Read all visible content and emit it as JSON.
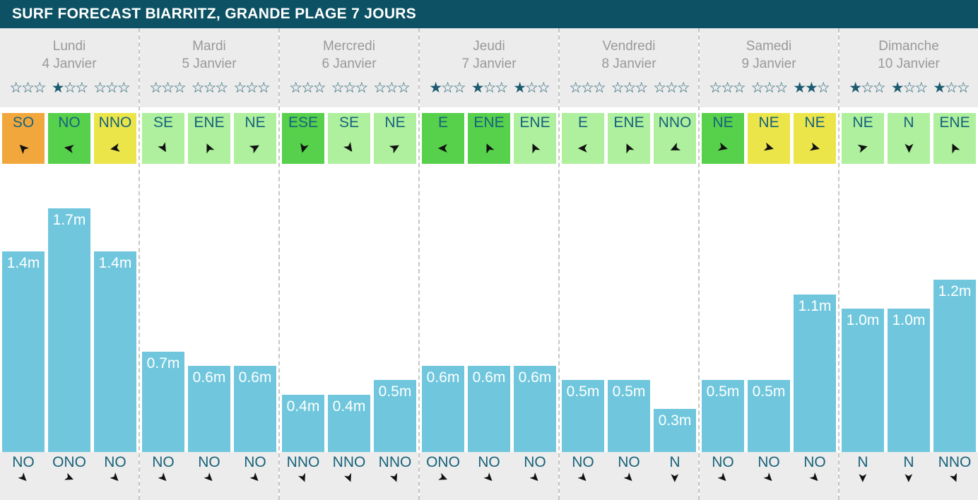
{
  "title": "SURF FORECAST BIARRITZ, GRANDE PLAGE 7 JOURS",
  "glyphs": {
    "arrow": "➤",
    "star_filled": "★",
    "star_empty": "☆"
  },
  "colors": {
    "header_bg": "#0d5264",
    "header_text": "#ffffff",
    "panel_bg": "#ececec",
    "day_text": "#999999",
    "star": "#1c5b70",
    "direction_text": "#17637a",
    "bar": "#70c7dd",
    "bar_label": "#ffffff",
    "separator": "#c6c6c6",
    "arrow": "#111111",
    "wind_orange": "#f2a73d",
    "wind_green": "#57d04b",
    "wind_yellow": "#ece54a",
    "wind_lightgreen": "#aef09d"
  },
  "days": [
    {
      "name": "Lundi",
      "date": "4 Janvier",
      "stars": [
        0,
        1,
        0
      ],
      "wind": [
        {
          "dir": "SO",
          "color": "orange",
          "rot": -135
        },
        {
          "dir": "NO",
          "color": "green",
          "rot": -170
        },
        {
          "dir": "NNO",
          "color": "yellow",
          "rot": 170
        }
      ],
      "waves": [
        {
          "label": "1.4m",
          "h": 1.4,
          "swell": "NO",
          "rot": 45
        },
        {
          "label": "1.7m",
          "h": 1.7,
          "swell": "ONO",
          "rot": 22
        },
        {
          "label": "1.4m",
          "h": 1.4,
          "swell": "NO",
          "rot": 45
        }
      ]
    },
    {
      "name": "Mardi",
      "date": "5 Janvier",
      "stars": [
        0,
        0,
        0
      ],
      "wind": [
        {
          "dir": "SE",
          "color": "light",
          "rot": 60
        },
        {
          "dir": "ENE",
          "color": "light",
          "rot": -115
        },
        {
          "dir": "NE",
          "color": "light",
          "rot": -30
        }
      ],
      "waves": [
        {
          "label": "0.7m",
          "h": 0.7,
          "swell": "NO",
          "rot": 45
        },
        {
          "label": "0.6m",
          "h": 0.6,
          "swell": "NO",
          "rot": 45
        },
        {
          "label": "0.6m",
          "h": 0.6,
          "swell": "NO",
          "rot": 45
        }
      ]
    },
    {
      "name": "Mercredi",
      "date": "6 Janvier",
      "stars": [
        0,
        0,
        0
      ],
      "wind": [
        {
          "dir": "ESE",
          "color": "green",
          "rot": 105
        },
        {
          "dir": "SE",
          "color": "light",
          "rot": 55
        },
        {
          "dir": "NE",
          "color": "light",
          "rot": -30
        }
      ],
      "waves": [
        {
          "label": "0.4m",
          "h": 0.4,
          "swell": "NNO",
          "rot": 68
        },
        {
          "label": "0.4m",
          "h": 0.4,
          "swell": "NNO",
          "rot": 68
        },
        {
          "label": "0.5m",
          "h": 0.5,
          "swell": "NNO",
          "rot": 68
        }
      ]
    },
    {
      "name": "Jeudi",
      "date": "7 Janvier",
      "stars": [
        1,
        1,
        1
      ],
      "wind": [
        {
          "dir": "E",
          "color": "green",
          "rot": 180
        },
        {
          "dir": "ENE",
          "color": "green",
          "rot": -115
        },
        {
          "dir": "ENE",
          "color": "light",
          "rot": -115
        }
      ],
      "waves": [
        {
          "label": "0.6m",
          "h": 0.6,
          "swell": "ONO",
          "rot": 22
        },
        {
          "label": "0.6m",
          "h": 0.6,
          "swell": "NO",
          "rot": 45
        },
        {
          "label": "0.6m",
          "h": 0.6,
          "swell": "NO",
          "rot": 45
        }
      ]
    },
    {
      "name": "Vendredi",
      "date": "8 Janvier",
      "stars": [
        0,
        0,
        0
      ],
      "wind": [
        {
          "dir": "E",
          "color": "light",
          "rot": 180
        },
        {
          "dir": "ENE",
          "color": "light",
          "rot": -115
        },
        {
          "dir": "NNO",
          "color": "light",
          "rot": 155
        }
      ],
      "waves": [
        {
          "label": "0.5m",
          "h": 0.5,
          "swell": "NO",
          "rot": 45
        },
        {
          "label": "0.5m",
          "h": 0.5,
          "swell": "NO",
          "rot": 45
        },
        {
          "label": "0.3m",
          "h": 0.3,
          "swell": "N",
          "rot": 90
        }
      ]
    },
    {
      "name": "Samedi",
      "date": "9 Janvier",
      "stars": [
        0,
        0,
        2
      ],
      "wind": [
        {
          "dir": "NE",
          "color": "green",
          "rot": 15
        },
        {
          "dir": "NE",
          "color": "yellow",
          "rot": 15
        },
        {
          "dir": "NE",
          "color": "yellow",
          "rot": 15
        }
      ],
      "waves": [
        {
          "label": "0.5m",
          "h": 0.5,
          "swell": "NO",
          "rot": 45
        },
        {
          "label": "0.5m",
          "h": 0.5,
          "swell": "NO",
          "rot": 45
        },
        {
          "label": "1.1m",
          "h": 1.1,
          "swell": "NO",
          "rot": 45
        }
      ]
    },
    {
      "name": "Dimanche",
      "date": "10 Janvier",
      "stars": [
        1,
        1,
        1
      ],
      "wind": [
        {
          "dir": "NE",
          "color": "light",
          "rot": -15
        },
        {
          "dir": "N",
          "color": "light",
          "rot": 90
        },
        {
          "dir": "ENE",
          "color": "light",
          "rot": -115
        }
      ],
      "waves": [
        {
          "label": "1.0m",
          "h": 1.0,
          "swell": "N",
          "rot": 90
        },
        {
          "label": "1.0m",
          "h": 1.0,
          "swell": "N",
          "rot": 90
        },
        {
          "label": "1.2m",
          "h": 1.2,
          "swell": "NNO",
          "rot": 68
        }
      ]
    }
  ],
  "chart_data": {
    "type": "bar",
    "title": "SURF FORECAST BIARRITZ, GRANDE PLAGE 7 JOURS",
    "xlabel": "",
    "ylabel": "",
    "ylim": [
      0,
      2
    ],
    "grid": false,
    "legend_position": "none",
    "categories": [
      "Lundi 4 Janvier",
      "Lundi 4 Janvier",
      "Lundi 4 Janvier",
      "Mardi 5 Janvier",
      "Mardi 5 Janvier",
      "Mardi 5 Janvier",
      "Mercredi 6 Janvier",
      "Mercredi 6 Janvier",
      "Mercredi 6 Janvier",
      "Jeudi 7 Janvier",
      "Jeudi 7 Janvier",
      "Jeudi 7 Janvier",
      "Vendredi 8 Janvier",
      "Vendredi 8 Janvier",
      "Vendredi 8 Janvier",
      "Samedi 9 Janvier",
      "Samedi 9 Janvier",
      "Samedi 9 Janvier",
      "Dimanche 10 Janvier",
      "Dimanche 10 Janvier",
      "Dimanche 10 Janvier"
    ],
    "values": [
      1.4,
      1.7,
      1.4,
      0.7,
      0.6,
      0.6,
      0.4,
      0.4,
      0.5,
      0.6,
      0.6,
      0.6,
      0.5,
      0.5,
      0.3,
      0.5,
      0.5,
      1.1,
      1.0,
      1.0,
      1.2
    ],
    "bar_labels": [
      "1.4m",
      "1.7m",
      "1.4m",
      "0.7m",
      "0.6m",
      "0.6m",
      "0.4m",
      "0.4m",
      "0.5m",
      "0.6m",
      "0.6m",
      "0.6m",
      "0.5m",
      "0.5m",
      "0.3m",
      "0.5m",
      "0.5m",
      "1.1m",
      "1.0m",
      "1.0m",
      "1.2m"
    ],
    "wind_directions": [
      "SO",
      "NO",
      "NNO",
      "SE",
      "ENE",
      "NE",
      "ESE",
      "SE",
      "NE",
      "E",
      "ENE",
      "ENE",
      "E",
      "ENE",
      "NNO",
      "NE",
      "NE",
      "NE",
      "NE",
      "N",
      "ENE"
    ],
    "swell_directions": [
      "NO",
      "ONO",
      "NO",
      "NO",
      "NO",
      "NO",
      "NNO",
      "NNO",
      "NNO",
      "ONO",
      "NO",
      "NO",
      "NO",
      "NO",
      "N",
      "NO",
      "NO",
      "NO",
      "N",
      "N",
      "NNO"
    ],
    "star_ratings_of_3": [
      0,
      1,
      0,
      0,
      0,
      0,
      0,
      0,
      0,
      1,
      1,
      1,
      0,
      0,
      0,
      0,
      0,
      2,
      1,
      1,
      1
    ]
  }
}
